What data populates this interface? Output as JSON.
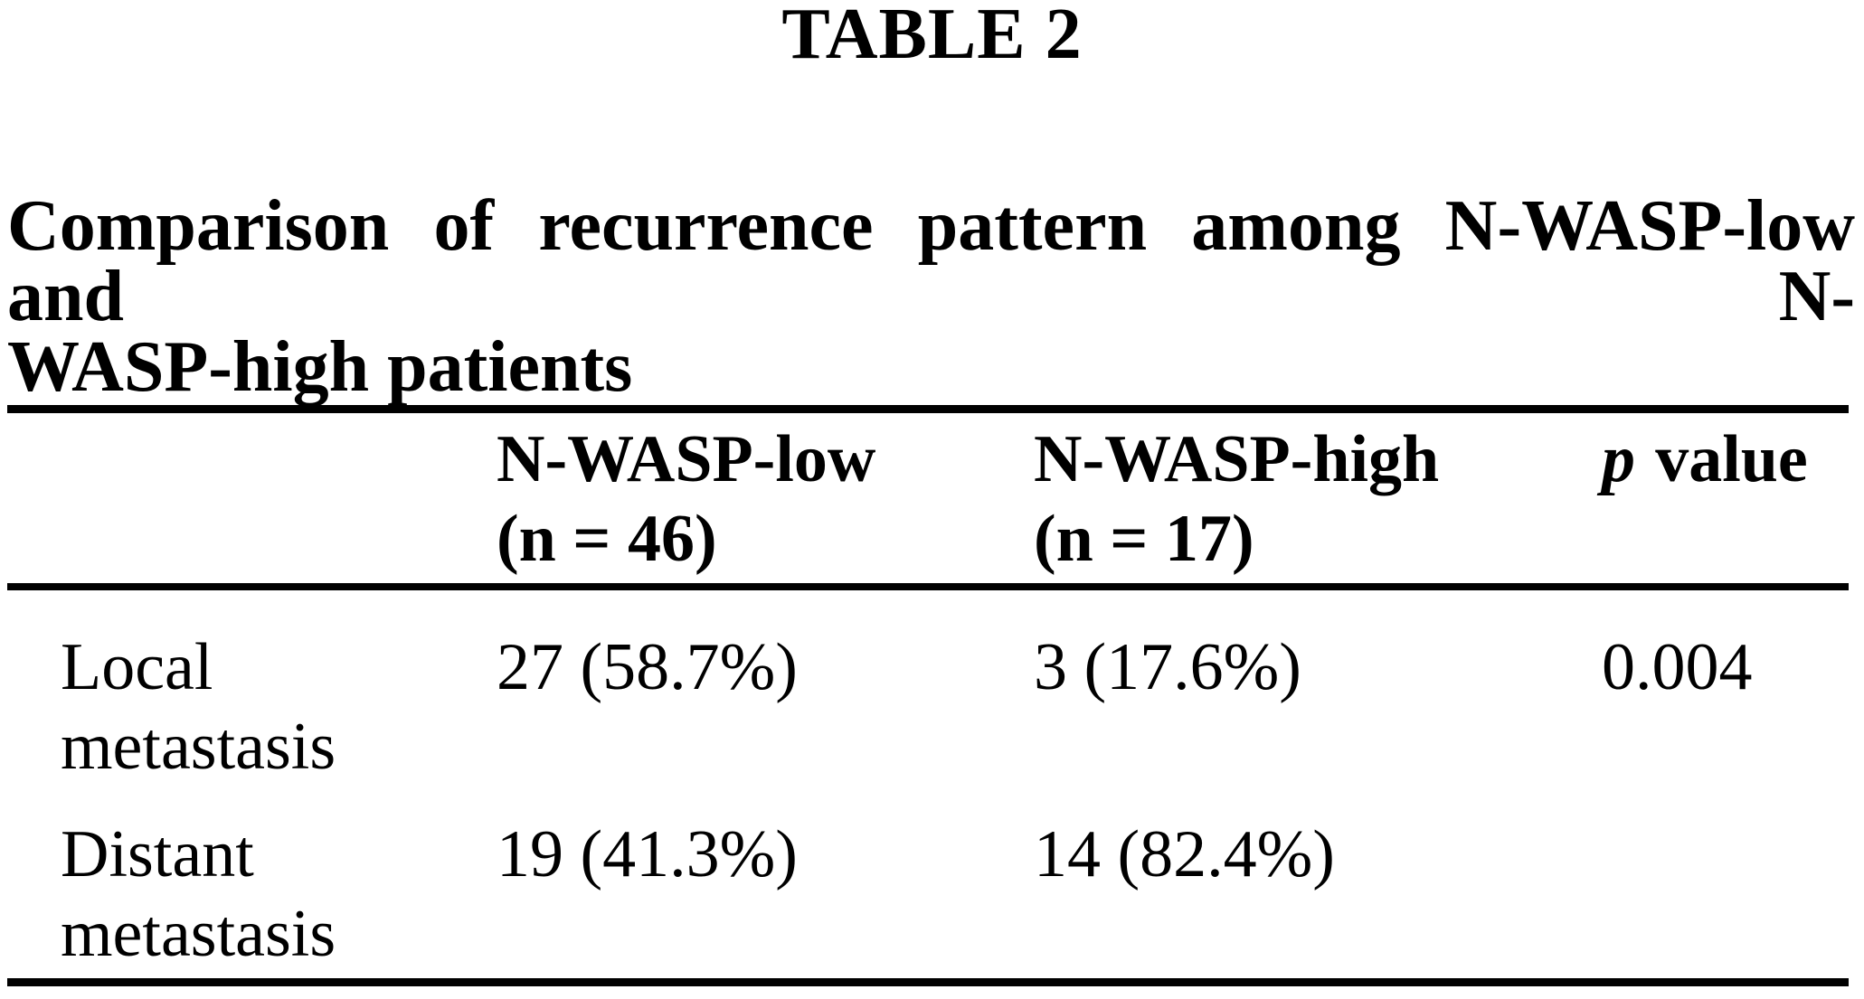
{
  "table_label": "TABLE 2",
  "caption": {
    "line1": "Comparison of recurrence pattern among N-WASP-low and N-",
    "line2": "WASP-high patients"
  },
  "table": {
    "header": {
      "col_low": {
        "name": "N-WASP-low",
        "n": "(n = 46)"
      },
      "col_high": {
        "name": "N-WASP-high",
        "n": "(n = 17)"
      },
      "col_p": {
        "symbol": "p",
        "text": "value"
      }
    },
    "rows": [
      {
        "label_line1": "Local",
        "label_line2": "metastasis",
        "nwasp_low": "27 (58.7%)",
        "nwasp_high": "3 (17.6%)",
        "p_value": "0.004"
      },
      {
        "label_line1": "Distant",
        "label_line2": "metastasis",
        "nwasp_low": "19 (41.3%)",
        "nwasp_high": "14 (82.4%)",
        "p_value": ""
      }
    ]
  },
  "colors": {
    "background": "#ffffff",
    "text": "#000000",
    "rule": "#000000"
  }
}
